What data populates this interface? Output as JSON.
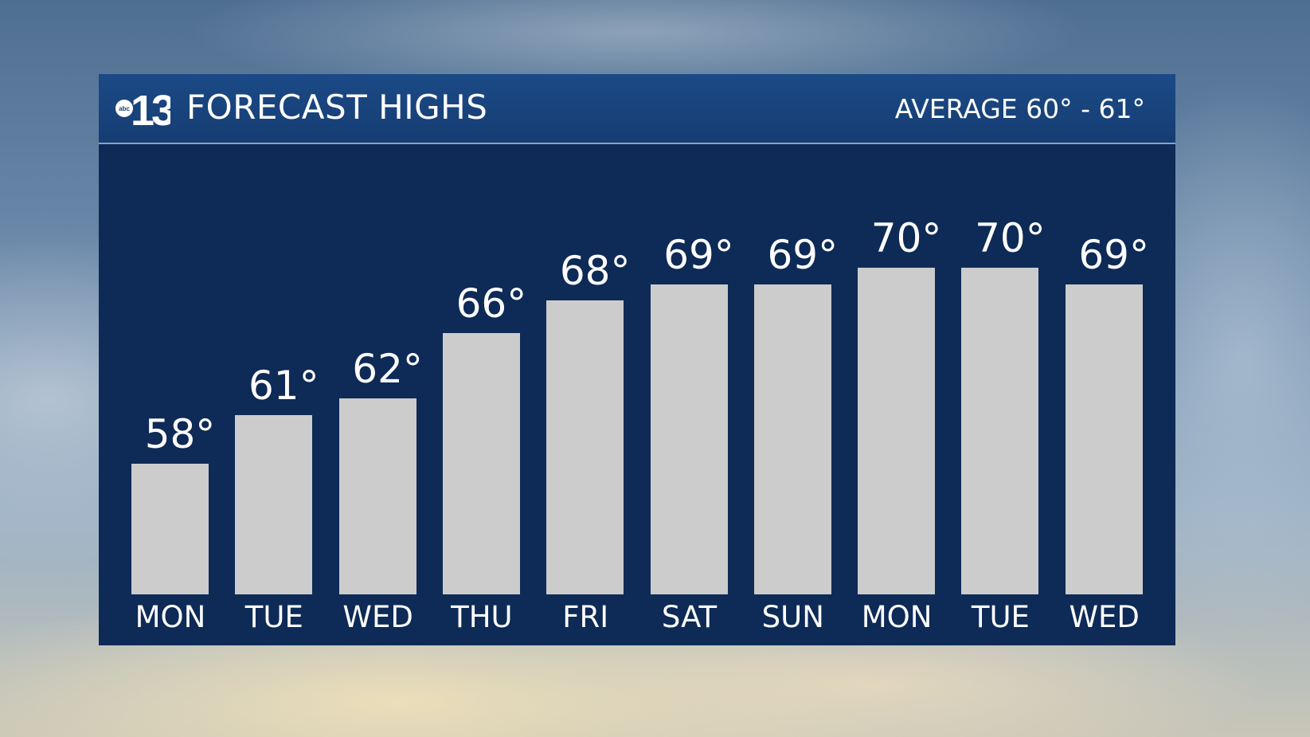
{
  "header": {
    "logo": "abc 13",
    "title": "FORECAST HIGHS",
    "average": "AVERAGE 60° - 61°"
  },
  "colors": {
    "panel": "#0e2a56",
    "header": "#1b4a86",
    "bar": "#cbcccb",
    "text": "#ffffff"
  },
  "chart_data": {
    "type": "bar",
    "title": "FORECAST HIGHS",
    "categories": [
      "MON",
      "TUE",
      "WED",
      "THU",
      "FRI",
      "SAT",
      "SUN",
      "MON",
      "TUE",
      "WED"
    ],
    "values": [
      58,
      61,
      62,
      66,
      68,
      69,
      69,
      70,
      70,
      69
    ],
    "labels": [
      "58°",
      "61°",
      "62°",
      "66°",
      "68°",
      "69°",
      "69°",
      "70°",
      "70°",
      "69°"
    ],
    "unit": "°F",
    "grid": false
  }
}
